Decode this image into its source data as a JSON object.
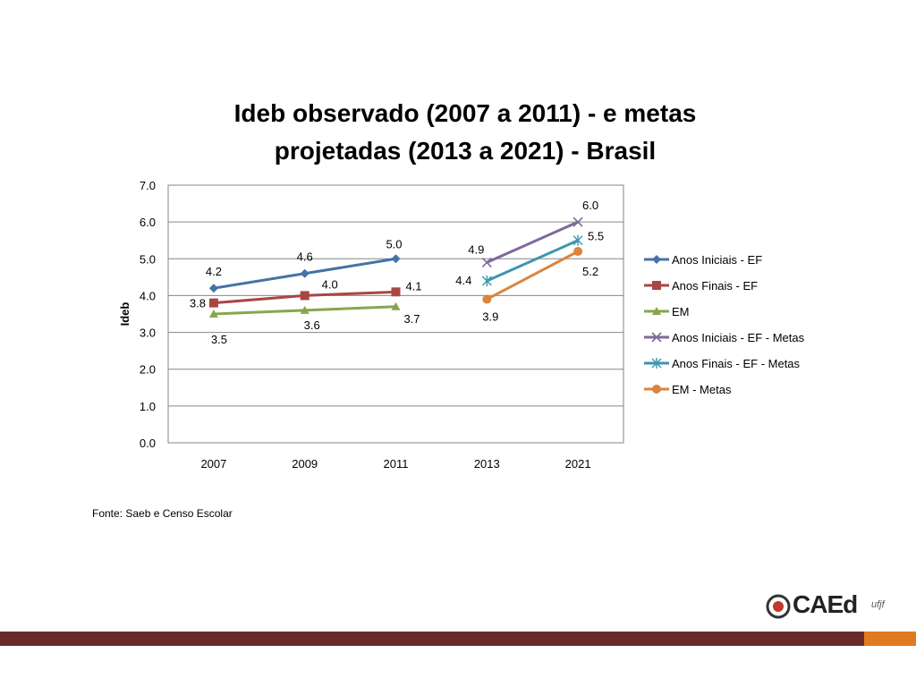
{
  "page": {
    "source": "Fonte: Saeb e Censo Escolar",
    "logo_text": "CAEd",
    "logo_sub": "ufjf",
    "bar_color": "#6b2a2a",
    "accent_color": "#e07a1f"
  },
  "chart_data": {
    "type": "line",
    "title_line1": "Ideb observado (2007 a 2011) - e metas",
    "title_line2": "projetadas (2013 a 2021) - Brasil",
    "ylabel": "Ideb",
    "xlabel": "",
    "ylim": [
      0,
      7
    ],
    "yticks": [
      "0.0",
      "1.0",
      "2.0",
      "3.0",
      "4.0",
      "5.0",
      "6.0",
      "7.0"
    ],
    "categories": [
      "2007",
      "2009",
      "2011",
      "2013",
      "2021"
    ],
    "grid": true,
    "legend_position": "right",
    "series": [
      {
        "name": "Anos Iniciais - EF",
        "color": "#4572a7",
        "marker": "diamond",
        "values": [
          4.2,
          4.6,
          5.0,
          null,
          null
        ],
        "labels": [
          "4.2",
          "4.6",
          "5.0",
          null,
          null
        ]
      },
      {
        "name": "Anos Finais - EF",
        "color": "#aa4643",
        "marker": "square",
        "values": [
          3.8,
          4.0,
          4.1,
          null,
          null
        ],
        "labels": [
          "3.8",
          "4.0",
          "4.1",
          null,
          null
        ]
      },
      {
        "name": "EM",
        "color": "#89a54e",
        "marker": "triangle",
        "values": [
          3.5,
          3.6,
          3.7,
          null,
          null
        ],
        "labels": [
          "3.5",
          "3.6",
          "3.7",
          null,
          null
        ]
      },
      {
        "name": "Anos Iniciais  - EF - Metas",
        "color": "#80699b",
        "marker": "x",
        "values": [
          null,
          null,
          null,
          4.9,
          6.0
        ],
        "labels": [
          null,
          null,
          null,
          "4.9",
          "6.0"
        ]
      },
      {
        "name": "Anos Finais  - EF - Metas",
        "color": "#3d96ae",
        "marker": "star",
        "values": [
          null,
          null,
          null,
          4.4,
          5.5
        ],
        "labels": [
          null,
          null,
          null,
          "4.4",
          "5.5"
        ]
      },
      {
        "name": "EM - Metas",
        "color": "#db843d",
        "marker": "circle",
        "values": [
          null,
          null,
          null,
          3.9,
          5.2
        ],
        "labels": [
          null,
          null,
          null,
          "3.9",
          "5.2"
        ]
      }
    ]
  }
}
